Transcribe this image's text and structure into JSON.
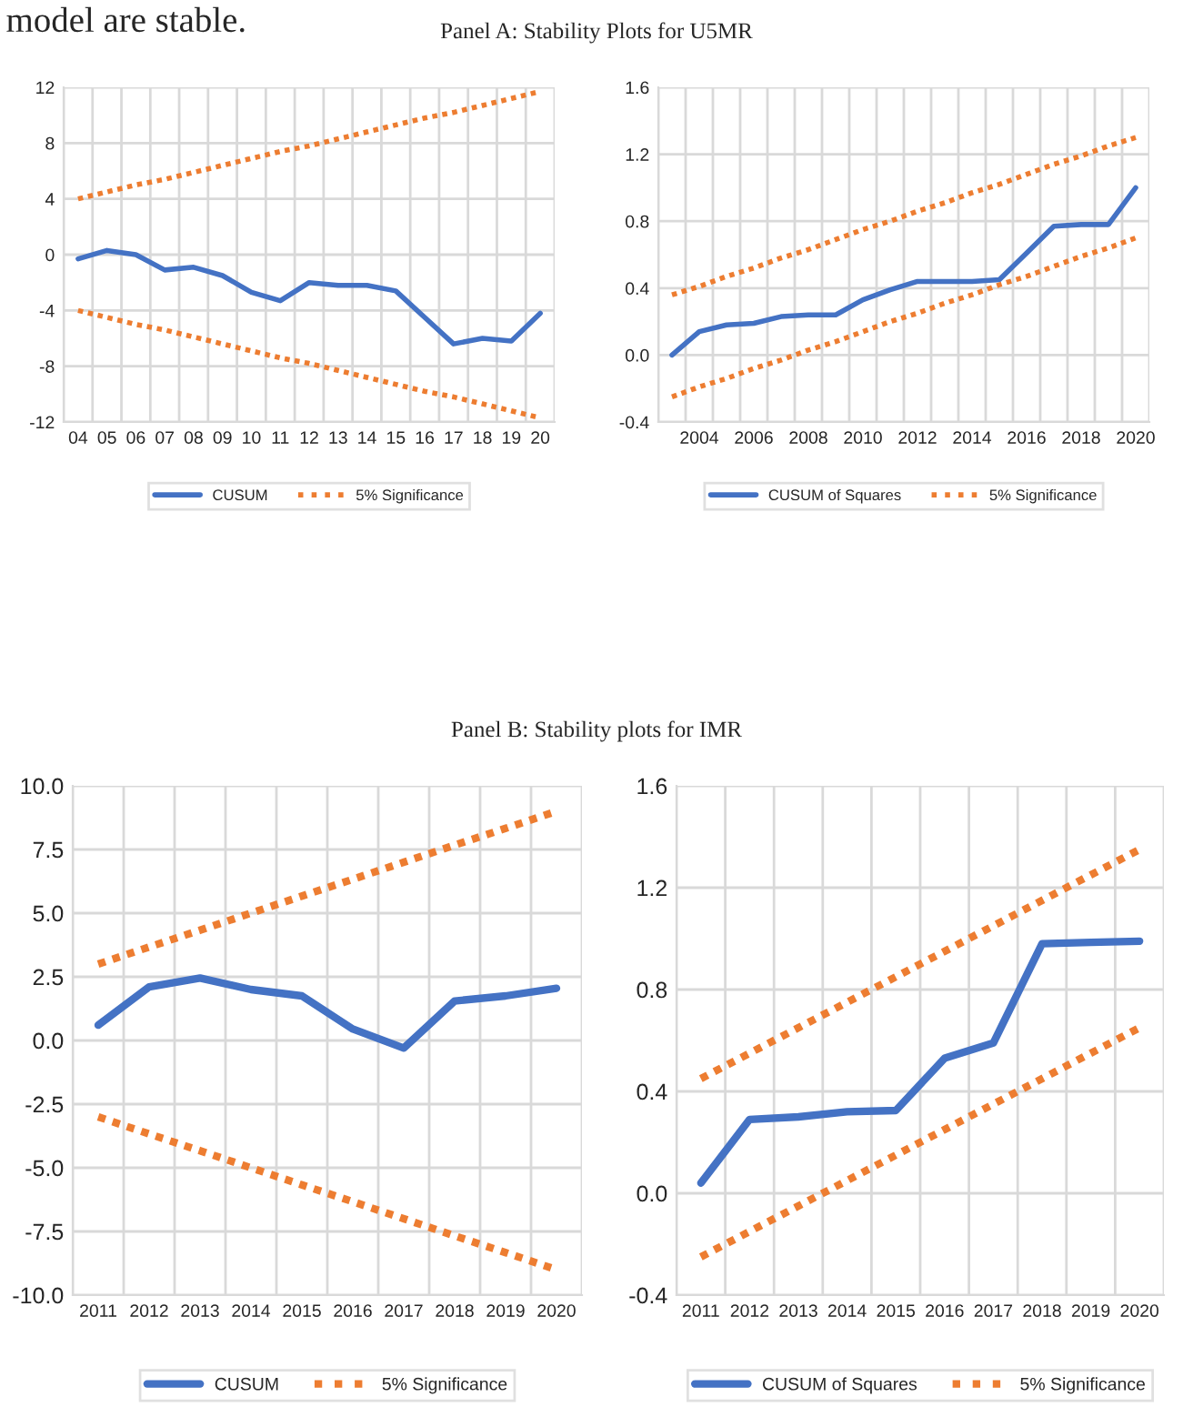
{
  "chart_data": [
    {
      "type": "line",
      "title": "Panel A: Stability Plots for U5MR",
      "annotations": [
        "model are stable."
      ],
      "categories": [
        "04",
        "05",
        "06",
        "07",
        "08",
        "09",
        "10",
        "11",
        "12",
        "13",
        "14",
        "15",
        "16",
        "17",
        "18",
        "19",
        "20"
      ],
      "series": [
        {
          "name": "CUSUM",
          "color": "#4472c4",
          "line_style": "solid",
          "values": [
            -0.3,
            0.3,
            0.0,
            -1.1,
            -0.9,
            -1.5,
            -2.7,
            -3.3,
            -2.0,
            -2.2,
            -2.2,
            -2.6,
            -4.5,
            -6.4,
            -6.0,
            -6.2,
            -4.2
          ]
        },
        {
          "name": "5% Significance",
          "color": "#ed7d31",
          "line_style": "dotted",
          "values": [
            4.0,
            4.5,
            5.0,
            5.4,
            5.9,
            6.4,
            6.9,
            7.4,
            7.8,
            8.3,
            8.8,
            9.3,
            9.8,
            10.2,
            10.7,
            11.2,
            11.7
          ]
        },
        {
          "color": "#ed7d31",
          "line_style": "dotted",
          "values": [
            -4.0,
            -4.5,
            -5.0,
            -5.4,
            -5.9,
            -6.4,
            -6.9,
            -7.4,
            -7.8,
            -8.3,
            -8.8,
            -9.3,
            -9.8,
            -10.2,
            -10.7,
            -11.2,
            -11.7
          ]
        }
      ],
      "ylim": [
        -12,
        12
      ],
      "yticks": [
        -12,
        -8,
        -4,
        0,
        4,
        8,
        12
      ],
      "grid": true,
      "legend": "bottom",
      "marker": "none"
    },
    {
      "type": "line",
      "categories": [
        null,
        "2004",
        null,
        "2006",
        null,
        "2008",
        null,
        "2010",
        null,
        "2012",
        null,
        "2014",
        null,
        "2016",
        null,
        "2018",
        null,
        "2020"
      ],
      "series": [
        {
          "name": "CUSUM of Squares",
          "color": "#4472c4",
          "line_style": "solid",
          "values": [
            0.0,
            0.14,
            0.18,
            0.19,
            0.23,
            0.24,
            0.24,
            0.33,
            0.39,
            0.44,
            0.44,
            0.44,
            0.45,
            0.61,
            0.77,
            0.78,
            0.78,
            1.0
          ]
        },
        {
          "name": "5% Significance",
          "color": "#ed7d31",
          "line_style": "dotted",
          "values": [
            0.36,
            0.41,
            0.47,
            0.52,
            0.58,
            0.63,
            0.69,
            0.75,
            0.8,
            0.86,
            0.91,
            0.97,
            1.02,
            1.08,
            1.14,
            1.19,
            1.25,
            1.3
          ]
        },
        {
          "color": "#ed7d31",
          "line_style": "dotted",
          "values": [
            -0.25,
            -0.19,
            -0.14,
            -0.08,
            -0.03,
            0.03,
            0.08,
            0.14,
            0.2,
            0.25,
            0.31,
            0.36,
            0.42,
            0.47,
            0.53,
            0.59,
            0.64,
            0.7
          ]
        }
      ],
      "ylim": [
        -0.4,
        1.6
      ],
      "yticks": [
        -0.4,
        {
          "value": 0,
          "label": "0.0"
        },
        0.4,
        0.8,
        1.2,
        1.6
      ],
      "grid": true,
      "legend": "bottom",
      "marker": "none"
    },
    {
      "type": "line",
      "title": "Panel B: Stability plots for IMR",
      "categories": [
        "2011",
        "2012",
        "2013",
        "2014",
        "2015",
        "2016",
        "2017",
        "2018",
        "2019",
        "2020"
      ],
      "series": [
        {
          "name": "CUSUM",
          "color": "#4472c4",
          "line_style": "solid",
          "values": [
            0.6,
            2.1,
            2.45,
            2.0,
            1.75,
            0.45,
            -0.3,
            1.55,
            1.75,
            2.05
          ]
        },
        {
          "name": "5% Significance",
          "color": "#ed7d31",
          "line_style": "dotted",
          "values": [
            3.0,
            3.67,
            4.33,
            5.0,
            5.67,
            6.33,
            7.0,
            7.67,
            8.33,
            9.0
          ]
        },
        {
          "color": "#ed7d31",
          "line_style": "dotted",
          "values": [
            -3.0,
            -3.67,
            -4.33,
            -5.0,
            -5.67,
            -6.33,
            -7.0,
            -7.67,
            -8.33,
            -9.0
          ]
        }
      ],
      "ylim": [
        -10,
        10
      ],
      "yticks": [
        {
          "value": -10,
          "label": "-10.0"
        },
        {
          "value": -7.5,
          "label": "-7.5"
        },
        {
          "value": -5,
          "label": "-5.0"
        },
        {
          "value": -2.5,
          "label": "-2.5"
        },
        {
          "value": 0,
          "label": "0.0"
        },
        {
          "value": 2.5,
          "label": "2.5"
        },
        {
          "value": 5,
          "label": "5.0"
        },
        {
          "value": 7.5,
          "label": "7.5"
        },
        {
          "value": 10,
          "label": "10.0"
        }
      ],
      "grid": true,
      "legend": "bottom",
      "marker": "none"
    },
    {
      "type": "line",
      "categories": [
        "2011",
        "2012",
        "2013",
        "2014",
        "2015",
        "2016",
        "2017",
        "2018",
        "2019",
        "2020"
      ],
      "series": [
        {
          "name": "CUSUM of Squares",
          "color": "#4472c4",
          "line_style": "solid",
          "values": [
            0.04,
            0.29,
            0.3,
            0.32,
            0.325,
            0.53,
            0.59,
            0.98,
            0.985,
            0.99
          ]
        },
        {
          "name": "5% Significance",
          "color": "#ed7d31",
          "line_style": "dotted",
          "values": [
            0.45,
            0.55,
            0.65,
            0.75,
            0.85,
            0.95,
            1.05,
            1.15,
            1.25,
            1.35
          ]
        },
        {
          "color": "#ed7d31",
          "line_style": "dotted",
          "values": [
            -0.25,
            -0.15,
            -0.05,
            0.05,
            0.15,
            0.25,
            0.35,
            0.45,
            0.55,
            0.65
          ]
        }
      ],
      "ylim": [
        -0.4,
        1.6
      ],
      "yticks": [
        -0.4,
        {
          "value": 0,
          "label": "0.0"
        },
        0.4,
        0.8,
        1.2,
        1.6
      ],
      "grid": true,
      "legend": "bottom",
      "marker": "none"
    }
  ]
}
